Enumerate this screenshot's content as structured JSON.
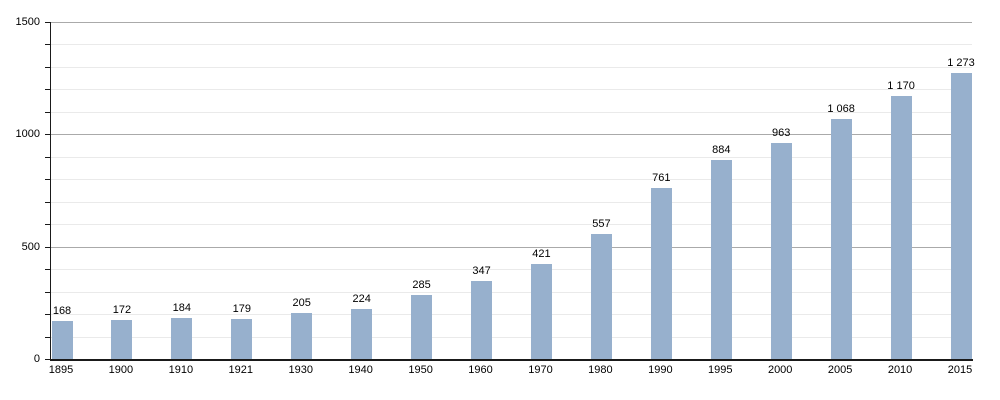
{
  "chart_data": {
    "type": "bar",
    "title": "",
    "xlabel": "",
    "ylabel": "",
    "categories": [
      "1895",
      "1900",
      "1910",
      "1921",
      "1930",
      "1940",
      "1950",
      "1960",
      "1970",
      "1980",
      "1990",
      "1995",
      "2000",
      "2005",
      "2010",
      "2015"
    ],
    "values": [
      168,
      172,
      184,
      179,
      205,
      224,
      285,
      347,
      421,
      557,
      761,
      884,
      963,
      1068,
      1170,
      1273
    ],
    "value_labels": [
      "168",
      "172",
      "184",
      "179",
      "205",
      "224",
      "285",
      "347",
      "421",
      "557",
      "761",
      "884",
      "963",
      "1 068",
      "1 170",
      "1 273"
    ],
    "ylim": [
      0,
      1500
    ],
    "yticks": [
      {
        "value": 0,
        "label": "0"
      },
      {
        "value": 500,
        "label": "500"
      },
      {
        "value": 1000,
        "label": "1000"
      },
      {
        "value": 1500,
        "label": "1500"
      }
    ],
    "minor_gridline_step": 100,
    "major_gridline_step": 500,
    "grid": "on",
    "legend": "none",
    "bar_color": "#97b0cd",
    "axis_color": "#1a1a1a",
    "major_gridline_color": "#aaaaaa",
    "minor_gridline_color": "#eaeaea"
  }
}
